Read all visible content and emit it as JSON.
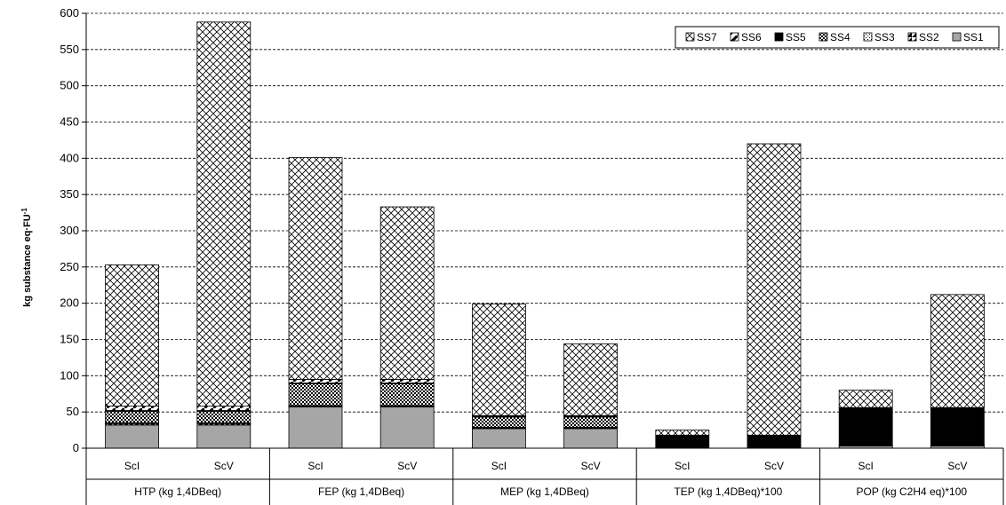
{
  "chart_data": {
    "type": "bar",
    "stacked": true,
    "ylabel": "kg substance eq·FU",
    "ylabel_sup": "-1",
    "ylim": [
      0,
      600
    ],
    "yticks": [
      0,
      50,
      100,
      150,
      200,
      250,
      300,
      350,
      400,
      450,
      500,
      550,
      600
    ],
    "grid": true,
    "legend_position": "top-right",
    "groups": [
      "HTP (kg 1,4DBeq)",
      "FEP (kg 1,4DBeq)",
      "MEP (kg 1,4DBeq)",
      "TEP (kg 1,4DBeq)*100",
      "POP (kg C2H4 eq)*100"
    ],
    "categories": [
      "ScI",
      "ScV",
      "ScI",
      "ScV",
      "ScI",
      "ScV",
      "ScI",
      "ScV",
      "ScI",
      "ScV"
    ],
    "series": [
      {
        "name": "SS1",
        "values": [
          32,
          32,
          57,
          57,
          27,
          27,
          0,
          0,
          3,
          3
        ]
      },
      {
        "name": "SS2",
        "values": [
          2,
          2,
          1,
          1,
          1,
          1,
          0,
          0,
          1,
          1
        ]
      },
      {
        "name": "SS3",
        "values": [
          1,
          1,
          1,
          1,
          1,
          1,
          0,
          0,
          1,
          1
        ]
      },
      {
        "name": "SS4",
        "values": [
          16,
          16,
          30,
          30,
          14,
          14,
          0,
          0,
          0,
          0
        ]
      },
      {
        "name": "SS5",
        "values": [
          1,
          1,
          1,
          1,
          1,
          1,
          18,
          18,
          51,
          51
        ]
      },
      {
        "name": "SS6",
        "values": [
          6,
          6,
          5,
          5,
          1,
          1,
          0,
          0,
          0,
          0
        ]
      },
      {
        "name": "SS7",
        "values": [
          195,
          530,
          306,
          238,
          154,
          99,
          7,
          402,
          24,
          156
        ]
      }
    ],
    "legend_order": [
      "SS7",
      "SS6",
      "SS5",
      "SS4",
      "SS3",
      "SS2",
      "SS1"
    ]
  }
}
